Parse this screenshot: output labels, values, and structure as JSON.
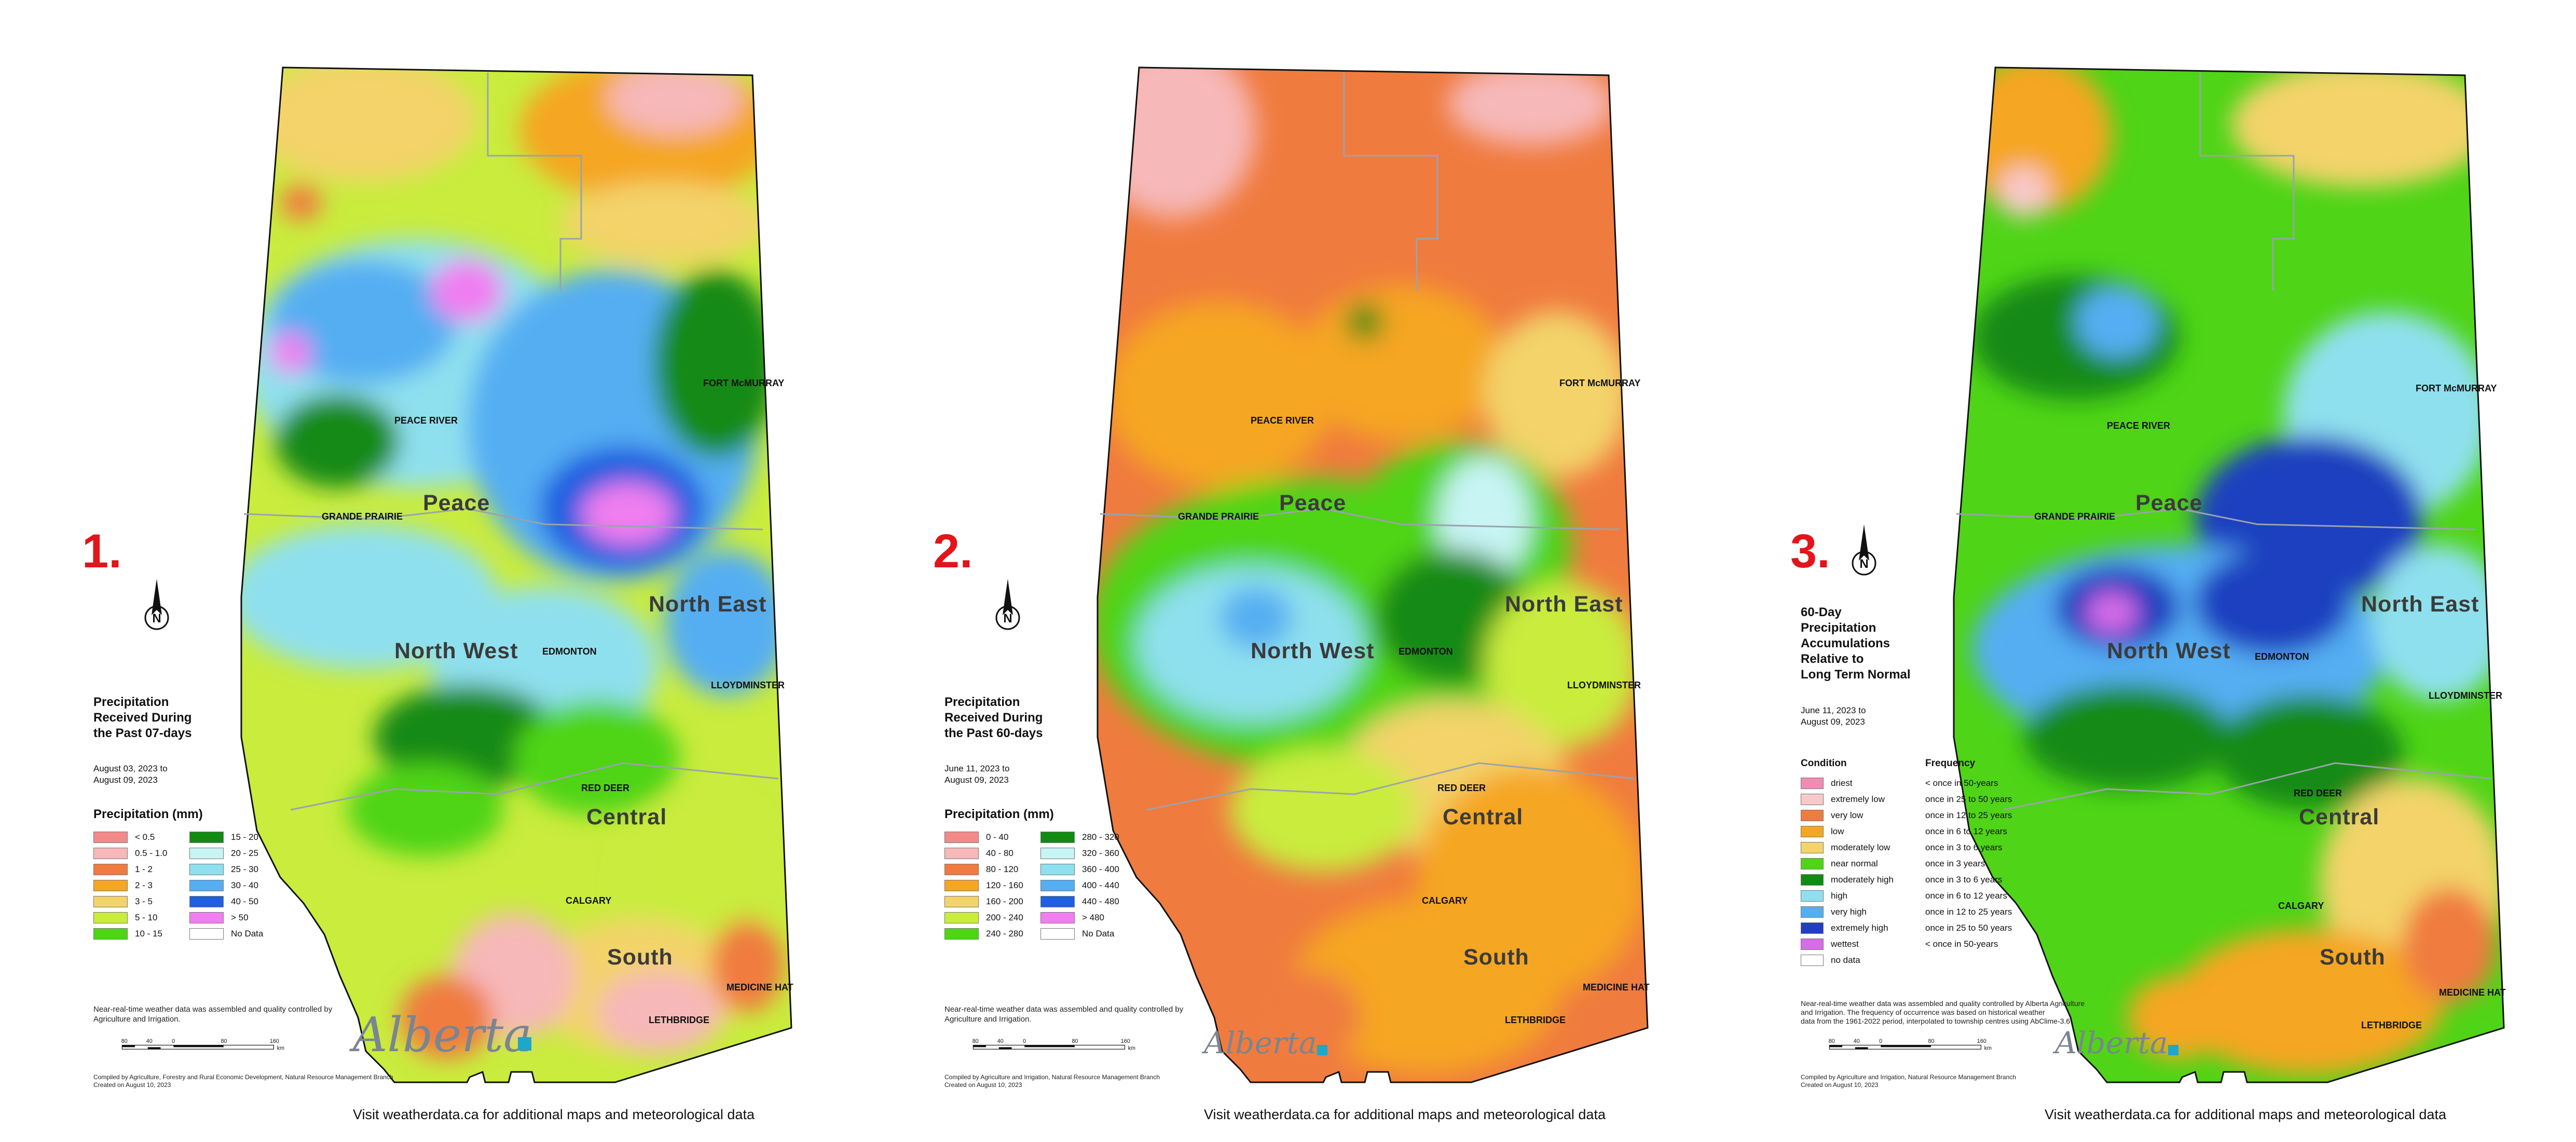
{
  "colors": {
    "border": "#111111",
    "region_text": "#3b3b3b",
    "number_red": "#e3141b",
    "logo_blue": "#1fa6c9"
  },
  "footer_text": "Visit weatherdata.ca for additional maps and meteorological data",
  "icons": [
    "north-arrow-icon",
    "city-marker-icon",
    "alberta-logo"
  ],
  "panels": [
    {
      "number": "1.",
      "title": "Precipitation\nReceived During\nthe Past 07-days",
      "dates": "August 03, 2023 to\nAugust 09, 2023",
      "legend_title": "Precipitation (mm)",
      "legend": [
        {
          "label": "< 0.5",
          "color": "#f28a8a"
        },
        {
          "label": "0.5 - 1.0",
          "color": "#f6b8b8"
        },
        {
          "label": "1 - 2",
          "color": "#f07b3f"
        },
        {
          "label": "2 - 3",
          "color": "#f5a623"
        },
        {
          "label": "3 - 5",
          "color": "#f3d36b"
        },
        {
          "label": "5 - 10",
          "color": "#c9ec3d"
        },
        {
          "label": "10 - 15",
          "color": "#4fd417"
        },
        {
          "label": "15 - 20",
          "color": "#138a12"
        },
        {
          "label": "20 - 25",
          "color": "#c8f4f4"
        },
        {
          "label": "25 - 30",
          "color": "#8fe0ee"
        },
        {
          "label": "30 - 40",
          "color": "#55aef2"
        },
        {
          "label": "40 - 50",
          "color": "#1f5fe0"
        },
        {
          "label": "> 50",
          "color": "#f07ef0"
        },
        {
          "label": "No Data",
          "color": "#ffffff"
        }
      ],
      "note": "Near-real-time weather data was assembled and quality controlled by\nAgriculture and Irrigation.",
      "scale_labels": [
        "80",
        "40",
        "0",
        "80",
        "160"
      ],
      "scale_unit": "km",
      "credit": "Compiled by Agriculture, Forestry and Rural Economic Development, Natural Resource Management Branch\nCreated on August 10, 2023",
      "logo_text": "Alberta",
      "regions": [
        "Peace",
        "North West",
        "North East",
        "Central",
        "South"
      ],
      "cities": [
        "FORT McMURRAY",
        "PEACE RIVER",
        "GRANDE PRAIRIE",
        "EDMONTON",
        "LLOYDMINSTER",
        "RED DEER",
        "CALGARY",
        "MEDICINE HAT",
        "LETHBRIDGE"
      ]
    },
    {
      "number": "2.",
      "title": "Precipitation\nReceived During\nthe Past 60-days",
      "dates": "June 11, 2023 to\nAugust 09, 2023",
      "legend_title": "Precipitation (mm)",
      "legend": [
        {
          "label": "0 - 40",
          "color": "#f28a8a"
        },
        {
          "label": "40 - 80",
          "color": "#f6b8b8"
        },
        {
          "label": "80 - 120",
          "color": "#f07b3f"
        },
        {
          "label": "120 - 160",
          "color": "#f5a623"
        },
        {
          "label": "160 - 200",
          "color": "#f3d36b"
        },
        {
          "label": "200 - 240",
          "color": "#c9ec3d"
        },
        {
          "label": "240 - 280",
          "color": "#4fd417"
        },
        {
          "label": "280 - 320",
          "color": "#138a12"
        },
        {
          "label": "320 - 360",
          "color": "#c8f4f4"
        },
        {
          "label": "360 - 400",
          "color": "#8fe0ee"
        },
        {
          "label": "400 - 440",
          "color": "#55aef2"
        },
        {
          "label": "440 - 480",
          "color": "#1f5fe0"
        },
        {
          "label": "> 480",
          "color": "#f07ef0"
        },
        {
          "label": "No Data",
          "color": "#ffffff"
        }
      ],
      "note": "Near-real-time weather data was assembled and quality controlled by\nAgriculture and Irrigation.",
      "scale_labels": [
        "80",
        "40",
        "0",
        "80",
        "160"
      ],
      "scale_unit": "km",
      "credit": "Compiled by Agriculture and Irrigation, Natural Resource Management Branch\nCreated on August 10, 2023",
      "logo_text": "Alberta",
      "regions": [
        "Peace",
        "North West",
        "North East",
        "Central",
        "South"
      ],
      "cities": [
        "FORT McMURRAY",
        "PEACE RIVER",
        "GRANDE PRAIRIE",
        "EDMONTON",
        "LLOYDMINSTER",
        "RED DEER",
        "CALGARY",
        "MEDICINE HAT",
        "LETHBRIDGE"
      ]
    },
    {
      "number": "3.",
      "title": "60-Day\nPrecipitation\nAccumulations\nRelative to\nLong Term Normal",
      "dates": "June 11, 2023 to\nAugust 09, 2023",
      "condition_header": "Condition",
      "frequency_header": "Frequency",
      "legend": [
        {
          "label": "driest",
          "freq": "< once in 50-years",
          "color": "#f28ab4"
        },
        {
          "label": "extremely low",
          "freq": "once in 25 to 50 years",
          "color": "#f8c9c9"
        },
        {
          "label": "very low",
          "freq": "once in 12 to 25 years",
          "color": "#f07b3f"
        },
        {
          "label": "low",
          "freq": "once in 6 to 12 years",
          "color": "#f5a623"
        },
        {
          "label": "moderately low",
          "freq": "once in 3 to 6 years",
          "color": "#f3d36b"
        },
        {
          "label": "near normal",
          "freq": "once in 3 years",
          "color": "#4fd417"
        },
        {
          "label": "moderately high",
          "freq": "once in 3 to 6 years",
          "color": "#138a12"
        },
        {
          "label": "high",
          "freq": "once in 6 to 12 years",
          "color": "#8fe0ee"
        },
        {
          "label": "very high",
          "freq": "once in 12 to 25 years",
          "color": "#55aef2"
        },
        {
          "label": "extremely high",
          "freq": "once in 25 to 50 years",
          "color": "#1f3fc0"
        },
        {
          "label": "wettest",
          "freq": "< once in 50-years",
          "color": "#d66ce8"
        },
        {
          "label": "no data",
          "freq": "",
          "color": "#ffffff"
        }
      ],
      "note": "Near-real-time weather data was assembled and quality controlled by Alberta Agriculture\nand Irrigation. The frequency of occurrence was based on historical weather\ndata from the 1961-2022 period, interpolated to township centres using AbClime-3.6",
      "scale_labels": [
        "80",
        "40",
        "0",
        "80",
        "160"
      ],
      "scale_unit": "km",
      "credit": "Compiled by Agriculture and Irrigation, Natural Resource Management Branch\nCreated on August 10, 2023",
      "logo_text": "Alberta",
      "regions": [
        "Peace",
        "North West",
        "North East",
        "Central",
        "South"
      ],
      "cities": [
        "FORT McMURRAY",
        "PEACE RIVER",
        "GRANDE PRAIRIE",
        "EDMONTON",
        "LLOYDMINSTER",
        "RED DEER",
        "CALGARY",
        "MEDICINE HAT",
        "LETHBRIDGE"
      ]
    }
  ]
}
